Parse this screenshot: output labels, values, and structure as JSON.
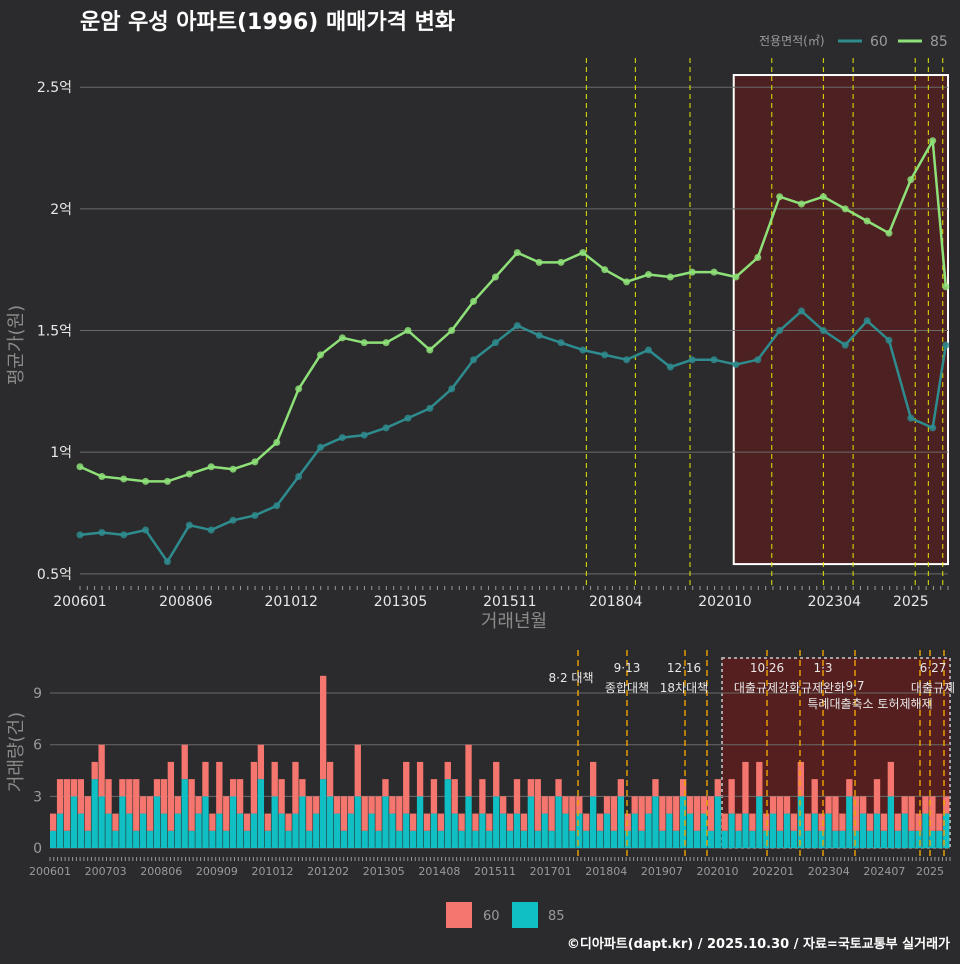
{
  "colors": {
    "bg": "#2b2b2d",
    "s60": "#2e8b8e",
    "s85": "#8ee078",
    "bar60": "#f4766e",
    "bar85": "#10bfc4",
    "grid": "#6a6a6a",
    "vline": "#e6e600",
    "vline2": "#f0a500",
    "highlight": "#5a1e1e",
    "text": "#e8e8e8",
    "dim": "#9a9a9a"
  },
  "title": "운암 우성 아파트(1996) 매매가격 변화",
  "legend": {
    "title": "전용면적(㎡)",
    "s60": "60",
    "s85": "85"
  },
  "footer": "©디아파트(dapt.kr) / 2025.10.30 / 자료=국토교통부 실거래가",
  "chart_data": [
    {
      "type": "line",
      "title": "운암 우성 아파트(1996) 매매가격 변화",
      "xlabel": "거래년월",
      "ylabel": "평균가(원)",
      "xlim": [
        2006.0,
        2025.85
      ],
      "ylim": [
        0.45,
        2.62
      ],
      "yticks": [
        0.5,
        1,
        1.5,
        2,
        2.5
      ],
      "ytick_labels": [
        "0.5억",
        "1억",
        "1.5억",
        "2억",
        "2.5억"
      ],
      "xticks": [
        2006.0,
        2008.42,
        2010.83,
        2013.33,
        2015.83,
        2018.25,
        2020.75,
        2023.25,
        2025.0
      ],
      "xtick_labels": [
        "200601",
        "200806",
        "201012",
        "201305",
        "201511",
        "201804",
        "202010",
        "202304",
        "2025"
      ],
      "vlines": [
        2017.58,
        2018.7,
        2019.95,
        2021.82,
        2023.0,
        2023.68,
        2025.1,
        2025.4,
        2025.73
      ],
      "highlight": {
        "x": [
          2020.95,
          2025.85
        ],
        "y": [
          0.54,
          2.55
        ]
      },
      "series": [
        {
          "name": "60",
          "x": [
            2006.0,
            2006.5,
            2007.0,
            2007.5,
            2008.0,
            2008.5,
            2009.0,
            2009.5,
            2010.0,
            2010.5,
            2011.0,
            2011.5,
            2012.0,
            2012.5,
            2013.0,
            2013.5,
            2014.0,
            2014.5,
            2015.0,
            2015.5,
            2016.0,
            2016.5,
            2017.0,
            2017.5,
            2018.0,
            2018.5,
            2019.0,
            2019.5,
            2020.0,
            2020.5,
            2021.0,
            2021.5,
            2022.0,
            2022.5,
            2023.0,
            2023.5,
            2024.0,
            2024.5,
            2025.0,
            2025.5,
            2025.8
          ],
          "y": [
            0.66,
            0.67,
            0.66,
            0.68,
            0.55,
            0.7,
            0.68,
            0.72,
            0.74,
            0.78,
            0.9,
            1.02,
            1.06,
            1.07,
            1.1,
            1.14,
            1.18,
            1.26,
            1.38,
            1.45,
            1.52,
            1.48,
            1.45,
            1.42,
            1.4,
            1.38,
            1.42,
            1.35,
            1.38,
            1.38,
            1.36,
            1.38,
            1.5,
            1.58,
            1.5,
            1.44,
            1.54,
            1.46,
            1.14,
            1.1,
            1.44
          ]
        },
        {
          "name": "85",
          "x": [
            2006.0,
            2006.5,
            2007.0,
            2007.5,
            2008.0,
            2008.5,
            2009.0,
            2009.5,
            2010.0,
            2010.5,
            2011.0,
            2011.5,
            2012.0,
            2012.5,
            2013.0,
            2013.5,
            2014.0,
            2014.5,
            2015.0,
            2015.5,
            2016.0,
            2016.5,
            2017.0,
            2017.5,
            2018.0,
            2018.5,
            2019.0,
            2019.5,
            2020.0,
            2020.5,
            2021.0,
            2021.5,
            2022.0,
            2022.5,
            2023.0,
            2023.5,
            2024.0,
            2024.5,
            2025.0,
            2025.5,
            2025.8
          ],
          "y": [
            0.94,
            0.9,
            0.89,
            0.88,
            0.88,
            0.91,
            0.94,
            0.93,
            0.96,
            1.04,
            1.26,
            1.4,
            1.47,
            1.45,
            1.45,
            1.5,
            1.42,
            1.5,
            1.62,
            1.72,
            1.82,
            1.78,
            1.78,
            1.82,
            1.75,
            1.7,
            1.73,
            1.72,
            1.74,
            1.74,
            1.72,
            1.8,
            2.05,
            2.02,
            2.05,
            2.0,
            1.95,
            1.9,
            2.12,
            2.28,
            1.68
          ]
        }
      ]
    },
    {
      "type": "bar",
      "xlabel": "",
      "ylabel": "거래량(건)",
      "ylim": [
        0,
        11.5
      ],
      "yticks": [
        0,
        3,
        6,
        9
      ],
      "xtick_labels": [
        "200601",
        "200703",
        "200806",
        "200909",
        "201012",
        "201202",
        "201305",
        "201408",
        "201511",
        "201701",
        "201804",
        "201907",
        "202010",
        "202201",
        "202304",
        "202407",
        "2025"
      ],
      "annotations": [
        "8·2 대책",
        "9·13",
        "종합대책",
        "12·16",
        "18차대책",
        "10·26",
        "대출규제강화",
        "1·3",
        "규제완화",
        "9·7",
        "특례대출축소 토허제해제",
        "6·27",
        "대출규제"
      ],
      "series": [
        {
          "name": "60",
          "values": [
            1,
            2,
            3,
            1,
            2,
            2,
            1,
            3,
            2,
            1,
            1,
            2,
            3,
            1,
            2,
            1,
            2,
            4,
            1,
            2,
            3,
            1,
            2,
            1,
            3,
            2,
            1,
            2,
            1,
            3,
            2,
            1,
            2,
            2,
            1,
            3,
            1,
            2,
            1,
            6,
            2,
            1,
            2,
            1,
            3,
            2,
            1,
            2,
            1,
            1,
            2,
            3,
            1,
            2,
            1,
            2,
            1,
            1,
            2,
            1,
            3,
            1,
            2,
            1,
            2,
            1,
            1,
            2,
            1,
            1,
            3,
            1,
            2,
            1,
            1,
            2,
            1,
            1,
            2,
            1,
            1,
            2,
            1,
            1,
            1,
            2,
            1,
            1,
            2,
            1,
            2,
            1,
            1,
            2,
            1,
            2,
            1,
            1,
            2,
            1,
            3,
            1,
            2,
            1,
            1,
            2,
            1,
            1,
            2,
            1,
            2,
            1,
            1,
            2,
            1,
            1,
            2,
            1,
            1,
            2,
            1,
            2,
            1,
            1,
            2,
            1,
            1,
            2,
            1,
            1
          ]
        },
        {
          "name": "85",
          "values": [
            1,
            2,
            1,
            3,
            2,
            1,
            4,
            3,
            2,
            1,
            3,
            2,
            1,
            2,
            1,
            3,
            2,
            1,
            2,
            4,
            1,
            2,
            3,
            1,
            2,
            1,
            3,
            2,
            1,
            2,
            4,
            1,
            3,
            2,
            1,
            2,
            3,
            1,
            2,
            4,
            3,
            2,
            1,
            2,
            3,
            1,
            2,
            1,
            3,
            2,
            1,
            2,
            1,
            3,
            1,
            2,
            1,
            4,
            2,
            1,
            3,
            1,
            2,
            1,
            3,
            2,
            1,
            2,
            1,
            3,
            1,
            2,
            1,
            3,
            2,
            1,
            2,
            1,
            3,
            1,
            2,
            1,
            3,
            1,
            2,
            1,
            2,
            3,
            1,
            2,
            1,
            3,
            2,
            1,
            2,
            1,
            3,
            1,
            2,
            1,
            2,
            1,
            3,
            1,
            2,
            1,
            2,
            1,
            3,
            1,
            2,
            1,
            2,
            1,
            1,
            3,
            1,
            2,
            1,
            2,
            1,
            3,
            1,
            2,
            1,
            1,
            2,
            1,
            1,
            2
          ]
        }
      ]
    }
  ]
}
